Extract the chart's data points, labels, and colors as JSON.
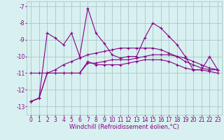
{
  "x": [
    0,
    1,
    2,
    3,
    4,
    5,
    6,
    7,
    8,
    9,
    10,
    11,
    12,
    13,
    14,
    15,
    16,
    17,
    18,
    19,
    20,
    21,
    22,
    23
  ],
  "line1": [
    -12.7,
    -12.5,
    -8.6,
    -8.9,
    -9.3,
    -8.6,
    -10.0,
    -7.1,
    -8.6,
    -9.2,
    -9.9,
    -10.1,
    -10.0,
    -10.0,
    -8.9,
    -8.0,
    -8.3,
    -8.8,
    -9.3,
    -10.0,
    -10.8,
    -10.8,
    -10.0,
    -10.8
  ],
  "line2": [
    -11.0,
    -11.0,
    -11.0,
    -11.0,
    -11.0,
    -11.0,
    -11.0,
    -10.3,
    -10.5,
    -10.5,
    -10.5,
    -10.5,
    -10.4,
    -10.3,
    -10.2,
    -10.2,
    -10.2,
    -10.3,
    -10.5,
    -10.7,
    -10.8,
    -10.8,
    -10.9,
    -11.0
  ],
  "line3": [
    -12.7,
    -12.5,
    -11.0,
    -11.0,
    -11.0,
    -11.0,
    -11.0,
    -10.4,
    -10.4,
    -10.3,
    -10.2,
    -10.2,
    -10.2,
    -10.1,
    -10.0,
    -9.9,
    -9.9,
    -9.9,
    -10.0,
    -10.1,
    -10.3,
    -10.5,
    -10.7,
    -10.8
  ],
  "line4": [
    -12.7,
    -12.5,
    -11.0,
    -10.8,
    -10.5,
    -10.3,
    -10.1,
    -9.9,
    -9.8,
    -9.7,
    -9.6,
    -9.5,
    -9.5,
    -9.5,
    -9.5,
    -9.5,
    -9.6,
    -9.8,
    -10.0,
    -10.3,
    -10.5,
    -10.7,
    -10.8,
    -10.8
  ],
  "bg_color": "#d8f0f0",
  "grid_color": "#a0c0c0",
  "line_color": "#880088",
  "ylabel_ticks": [
    -7,
    -8,
    -9,
    -10,
    -11,
    -12,
    -13
  ],
  "ylim": [
    -13.5,
    -6.7
  ],
  "xlim": [
    -0.5,
    23.5
  ],
  "xlabel": "Windchill (Refroidissement éolien,°C)",
  "xlabel_fontsize": 6,
  "tick_fontsize": 5.5,
  "marker": "+"
}
